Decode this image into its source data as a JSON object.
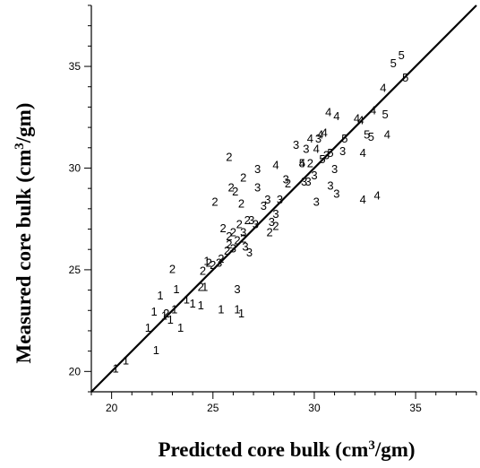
{
  "chart_data": {
    "type": "scatter",
    "title": "",
    "xlabel": "Predicted core bulk (cm",
    "xlabel_sup": "3",
    "xlabel_end": "/gm)",
    "ylabel": "Measured core bulk (cm",
    "ylabel_sup": "3",
    "ylabel_end": "/gm)",
    "xlim": [
      19,
      38
    ],
    "ylim": [
      19,
      38
    ],
    "xticks": [
      20,
      25,
      30,
      35
    ],
    "yticks": [
      20,
      25,
      30,
      35
    ],
    "grid": false,
    "legend": "none",
    "reference_line": {
      "from": [
        19,
        19
      ],
      "to": [
        38,
        38
      ]
    },
    "series": [
      {
        "marker": "1",
        "points": [
          [
            20.2,
            20.1
          ],
          [
            20.7,
            20.5
          ],
          [
            21.8,
            22.1
          ],
          [
            22.1,
            22.9
          ],
          [
            22.2,
            21.0
          ],
          [
            22.4,
            23.7
          ],
          [
            22.6,
            22.7
          ],
          [
            22.9,
            22.5
          ],
          [
            23.1,
            23.0
          ],
          [
            23.2,
            24.0
          ],
          [
            23.4,
            22.1
          ],
          [
            23.7,
            23.5
          ],
          [
            24.0,
            23.3
          ],
          [
            24.4,
            23.2
          ],
          [
            24.6,
            24.1
          ],
          [
            24.7,
            25.4
          ],
          [
            25.4,
            23.0
          ],
          [
            26.2,
            23.0
          ],
          [
            26.4,
            22.8
          ]
        ]
      },
      {
        "marker": "2",
        "points": [
          [
            22.7,
            22.8
          ],
          [
            23.0,
            25.0
          ],
          [
            24.4,
            24.1
          ],
          [
            24.5,
            24.9
          ],
          [
            24.8,
            25.3
          ],
          [
            25.0,
            25.2
          ],
          [
            25.1,
            28.3
          ],
          [
            25.4,
            25.5
          ],
          [
            25.5,
            27.0
          ],
          [
            25.7,
            25.9
          ],
          [
            25.8,
            30.5
          ],
          [
            25.8,
            26.2
          ],
          [
            25.8,
            26.6
          ],
          [
            25.9,
            29.0
          ],
          [
            26.0,
            26.8
          ],
          [
            26.1,
            28.8
          ],
          [
            26.2,
            26.4
          ],
          [
            26.3,
            27.2
          ],
          [
            26.4,
            28.2
          ],
          [
            26.5,
            26.5
          ],
          [
            26.5,
            29.5
          ],
          [
            26.7,
            27.4
          ],
          [
            27.8,
            26.8
          ],
          [
            28.1,
            27.1
          ],
          [
            28.7,
            29.2
          ],
          [
            29.8,
            30.2
          ]
        ]
      },
      {
        "marker": "3",
        "points": [
          [
            25.3,
            25.3
          ],
          [
            26.0,
            26.0
          ],
          [
            26.2,
            24.0
          ],
          [
            26.5,
            26.8
          ],
          [
            26.6,
            26.1
          ],
          [
            26.8,
            25.8
          ],
          [
            26.9,
            27.4
          ],
          [
            27.1,
            27.2
          ],
          [
            27.2,
            29.9
          ],
          [
            27.2,
            29.0
          ],
          [
            27.5,
            28.1
          ],
          [
            27.7,
            28.4
          ],
          [
            27.9,
            27.3
          ],
          [
            28.1,
            27.7
          ],
          [
            28.3,
            28.4
          ],
          [
            28.6,
            29.4
          ],
          [
            29.1,
            31.1
          ],
          [
            29.5,
            29.3
          ],
          [
            29.6,
            30.9
          ],
          [
            29.7,
            29.3
          ],
          [
            30.0,
            29.6
          ],
          [
            30.1,
            28.3
          ],
          [
            30.2,
            31.4
          ],
          [
            30.6,
            30.6
          ],
          [
            30.8,
            29.1
          ],
          [
            31.0,
            29.9
          ],
          [
            31.1,
            28.7
          ],
          [
            31.4,
            30.8
          ]
        ]
      },
      {
        "marker": "4",
        "points": [
          [
            28.1,
            30.1
          ],
          [
            29.4,
            30.2
          ],
          [
            29.8,
            31.4
          ],
          [
            30.1,
            30.9
          ],
          [
            30.3,
            31.6
          ],
          [
            30.5,
            31.7
          ],
          [
            30.7,
            32.7
          ],
          [
            31.1,
            32.5
          ],
          [
            32.1,
            32.4
          ],
          [
            32.3,
            32.3
          ],
          [
            32.4,
            30.7
          ],
          [
            32.4,
            28.4
          ],
          [
            32.9,
            32.8
          ],
          [
            33.1,
            28.6
          ],
          [
            33.4,
            33.9
          ],
          [
            33.6,
            31.6
          ]
        ]
      },
      {
        "marker": "5",
        "points": [
          [
            29.4,
            30.2
          ],
          [
            30.4,
            30.4
          ],
          [
            30.8,
            30.7
          ],
          [
            31.5,
            31.4
          ],
          [
            32.6,
            31.6
          ],
          [
            32.8,
            31.5
          ],
          [
            33.5,
            32.6
          ],
          [
            33.9,
            35.1
          ],
          [
            34.3,
            35.5
          ],
          [
            34.5,
            34.4
          ]
        ]
      }
    ]
  }
}
